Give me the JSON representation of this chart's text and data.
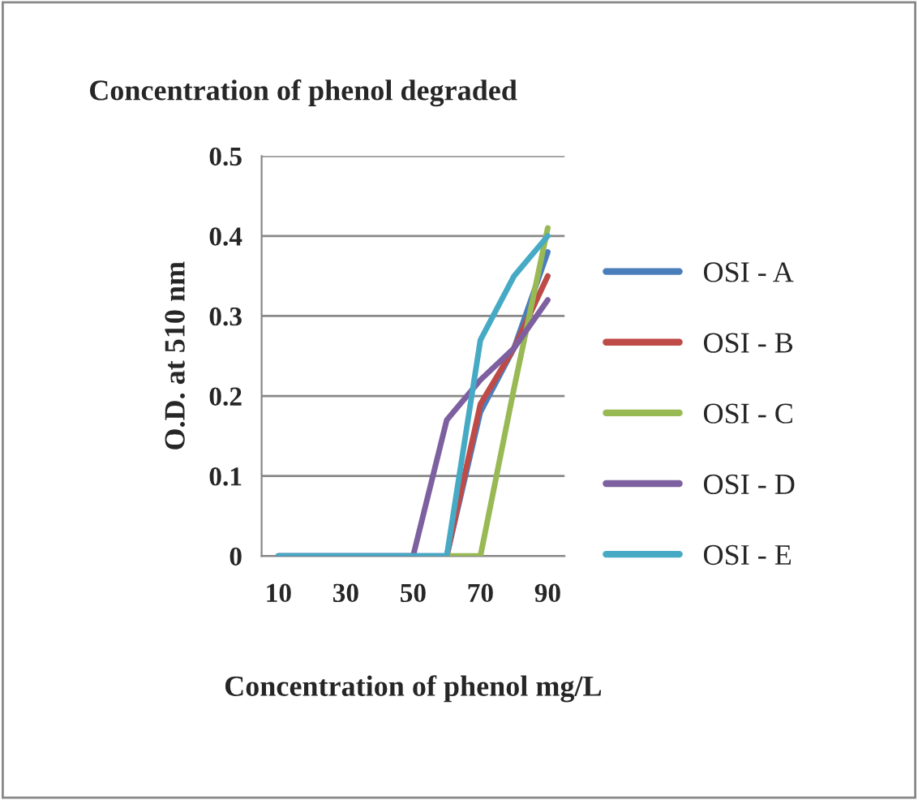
{
  "chart_data": {
    "type": "line",
    "title": "Concentration of phenol degraded",
    "xlabel": "Concentration of phenol mg/L",
    "ylabel": "O.D. at 510 nm",
    "categories": [
      "10",
      null,
      "30",
      null,
      "50",
      null,
      "70",
      null,
      "90"
    ],
    "series": [
      {
        "name": "OSI - A",
        "color": "#4a7ebb",
        "values": [
          0,
          0,
          0,
          0,
          0,
          0,
          0.18,
          0.26,
          0.38
        ]
      },
      {
        "name": "OSI - B",
        "color": "#be4b48",
        "values": [
          null,
          null,
          null,
          null,
          null,
          0,
          0.19,
          0.26,
          0.35
        ]
      },
      {
        "name": "OSI - C",
        "color": "#98b954",
        "values": [
          null,
          null,
          null,
          null,
          null,
          0,
          0,
          0.21,
          0.41
        ]
      },
      {
        "name": "OSI - D",
        "color": "#7d60a0",
        "values": [
          0,
          0,
          0,
          0,
          0,
          0.17,
          0.22,
          0.26,
          0.32
        ]
      },
      {
        "name": "OSI - E",
        "color": "#46aac5",
        "values": [
          0,
          0,
          0,
          0,
          0,
          0,
          0.27,
          0.35,
          0.4
        ]
      }
    ],
    "ylim": [
      0,
      0.5
    ],
    "yticks": [
      0,
      0.1,
      0.2,
      0.3,
      0.4,
      0.5
    ],
    "grid": "y",
    "legend": "right",
    "marker": "none",
    "line_style": "solid"
  }
}
